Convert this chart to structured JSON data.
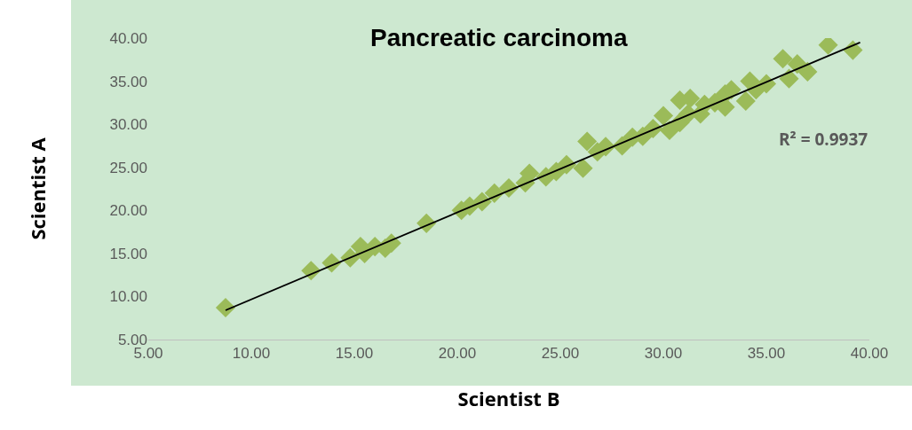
{
  "chart_data": {
    "type": "scatter",
    "title": "Pancreatic carcinoma",
    "xlabel": "Scientist B",
    "ylabel": "Scientist A",
    "marker": "diamond",
    "grid": false,
    "xlim": [
      5,
      40
    ],
    "ylim": [
      5,
      40
    ],
    "xticks": [
      {
        "value": 5,
        "label": "5.00"
      },
      {
        "value": 10,
        "label": "10.00"
      },
      {
        "value": 15,
        "label": "15.00"
      },
      {
        "value": 20,
        "label": "20.00"
      },
      {
        "value": 25,
        "label": "25.00"
      },
      {
        "value": 30,
        "label": "30.00"
      },
      {
        "value": 35,
        "label": "35.00"
      },
      {
        "value": 40,
        "label": "40.00"
      }
    ],
    "yticks": [
      {
        "value": 5,
        "label": "5.00"
      },
      {
        "value": 10,
        "label": "10.00"
      },
      {
        "value": 15,
        "label": "15.00"
      },
      {
        "value": 20,
        "label": "20.00"
      },
      {
        "value": 25,
        "label": "25.00"
      },
      {
        "value": 30,
        "label": "30.00"
      },
      {
        "value": 35,
        "label": "35.00"
      },
      {
        "value": 40,
        "label": "40.00"
      }
    ],
    "annotations": [
      "R² = 0.9937"
    ],
    "series": [
      {
        "color": "#9bbb59",
        "x": [
          8.75,
          12.9,
          13.9,
          14.8,
          15.3,
          15.5,
          16.0,
          16.5,
          16.8,
          18.5,
          20.2,
          20.6,
          21.2,
          21.8,
          22.5,
          23.3,
          23.5,
          24.3,
          24.8,
          25.3,
          26.1,
          26.3,
          26.8,
          27.2,
          28.0,
          28.5,
          29.0,
          29.5,
          29.8,
          30.0,
          30.3,
          30.8,
          30.8,
          31.2,
          31.3,
          31.8,
          32.0,
          32.5,
          33.0,
          33.0,
          33.3,
          34.0,
          34.2,
          34.5,
          35.0,
          35.8,
          36.1,
          36.5,
          37.0,
          38.0,
          39.2
        ],
        "values": [
          8.7,
          13.0,
          13.9,
          14.5,
          15.8,
          15.0,
          15.8,
          15.6,
          16.2,
          18.5,
          20.0,
          20.5,
          21.0,
          22.0,
          22.6,
          23.2,
          24.3,
          23.9,
          24.5,
          25.3,
          24.9,
          28.0,
          26.8,
          27.4,
          27.5,
          28.5,
          28.6,
          29.5,
          null,
          31.0,
          29.3,
          30.2,
          32.8,
          31.2,
          33.0,
          31.2,
          32.3,
          32.5,
          32.0,
          33.5,
          34.0,
          32.7,
          35.0,
          34.0,
          34.7,
          37.6,
          35.3,
          37.0,
          36.1,
          39.2,
          38.6
        ]
      },
      {
        "type": "line",
        "color": "#000000",
        "marker": "none",
        "x": [
          8.75,
          39.55
        ],
        "values": [
          8.4,
          39.5
        ]
      }
    ]
  }
}
